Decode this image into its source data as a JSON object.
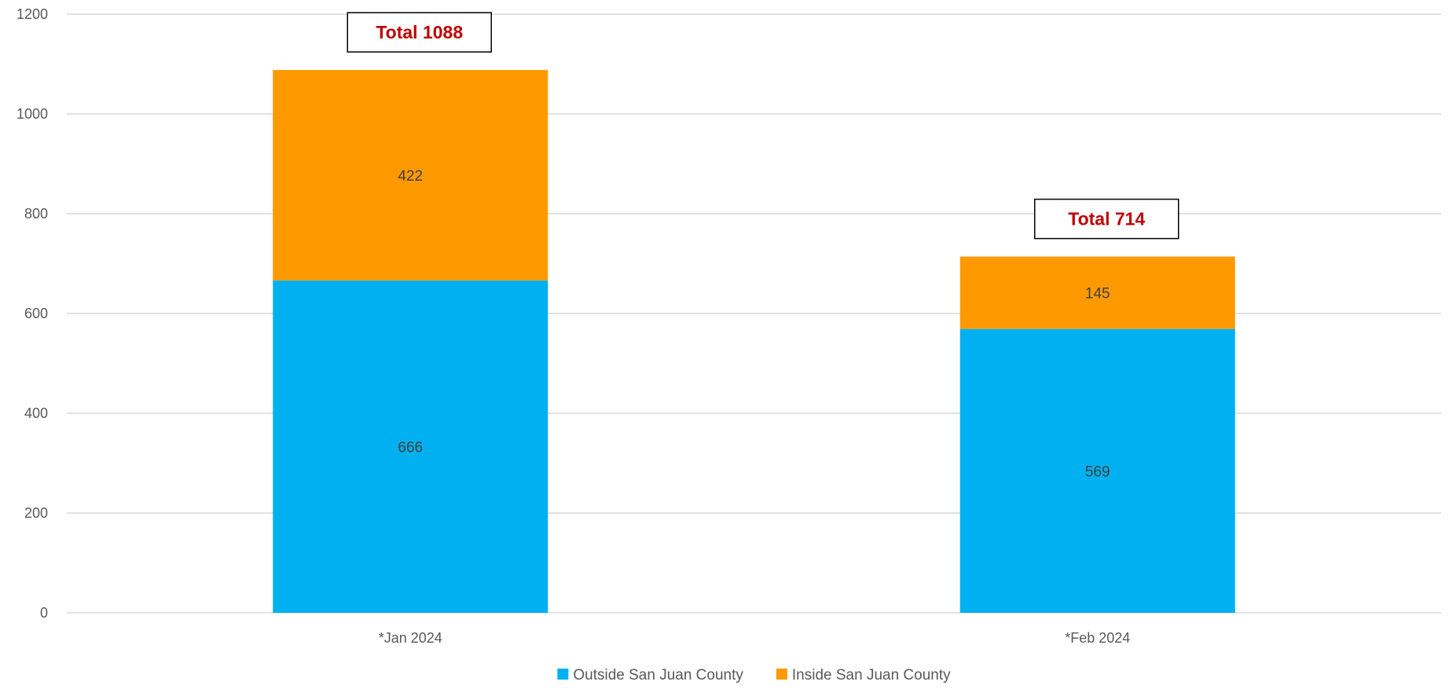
{
  "chart_data": {
    "type": "bar",
    "stacked": true,
    "categories": [
      "*Jan 2024",
      "*Feb 2024"
    ],
    "series": [
      {
        "name": "Outside San Juan County",
        "values": [
          666,
          569
        ],
        "color": "#00b0f0"
      },
      {
        "name": "Inside San Juan County",
        "values": [
          422,
          145
        ],
        "color": "#ff9900"
      }
    ],
    "totals": [
      "Total 1088",
      "Total 714"
    ],
    "ylim": [
      0,
      1200
    ],
    "yticks": [
      0,
      200,
      400,
      600,
      800,
      1000,
      1200
    ],
    "grid": true,
    "legend": "bottom",
    "title": "",
    "xlabel": "",
    "ylabel": ""
  }
}
